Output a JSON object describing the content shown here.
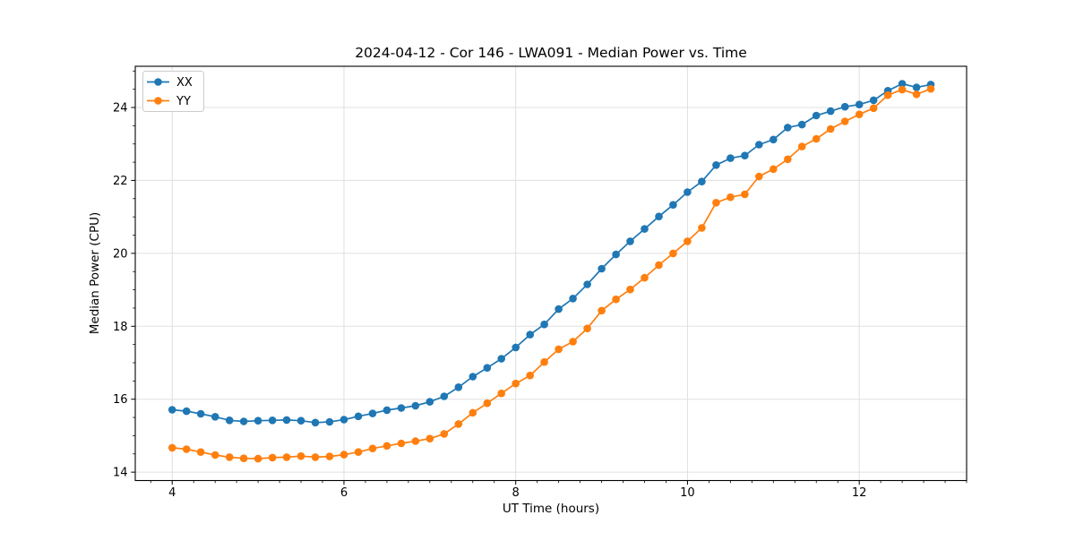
{
  "chart_data": {
    "type": "line",
    "title": "2024-04-12 - Cor 146 - LWA091 - Median Power vs. Time",
    "xlabel": "UT Time (hours)",
    "ylabel": "Median Power (CPU)",
    "xlim": [
      3.57,
      13.25
    ],
    "ylim": [
      13.77,
      25.13
    ],
    "xticks": [
      4,
      6,
      8,
      10,
      12
    ],
    "yticks": [
      14,
      16,
      18,
      20,
      22,
      24
    ],
    "x_minor_step": 0.25,
    "y_minor_step": 0.5,
    "grid": true,
    "legend_position": "upper-left",
    "colors": {
      "xx": "#1f77b4",
      "yy": "#ff7f0e",
      "grid": "#e0e0e0",
      "spine": "#000000"
    },
    "x": [
      4.0,
      4.167,
      4.333,
      4.5,
      4.667,
      4.833,
      5.0,
      5.167,
      5.333,
      5.5,
      5.667,
      5.833,
      6.0,
      6.167,
      6.333,
      6.5,
      6.667,
      6.833,
      7.0,
      7.167,
      7.333,
      7.5,
      7.667,
      7.833,
      8.0,
      8.167,
      8.333,
      8.5,
      8.667,
      8.833,
      9.0,
      9.167,
      9.333,
      9.5,
      9.667,
      9.833,
      10.0,
      10.167,
      10.333,
      10.5,
      10.667,
      10.833,
      11.0,
      11.167,
      11.333,
      11.5,
      11.667,
      11.833,
      12.0,
      12.167,
      12.333,
      12.5,
      12.667,
      12.833
    ],
    "series": [
      {
        "name": "XX",
        "color": "#1f77b4",
        "values": [
          15.71,
          15.67,
          15.6,
          15.52,
          15.42,
          15.39,
          15.41,
          15.42,
          15.43,
          15.41,
          15.36,
          15.38,
          15.44,
          15.53,
          15.61,
          15.7,
          15.76,
          15.82,
          15.93,
          16.08,
          16.33,
          16.62,
          16.86,
          17.11,
          17.42,
          17.77,
          18.05,
          18.47,
          18.76,
          19.15,
          19.58,
          19.97,
          20.33,
          20.67,
          21.01,
          21.33,
          21.68,
          21.97,
          22.42,
          22.61,
          22.68,
          22.98,
          23.12,
          23.45,
          23.53,
          23.78,
          23.9,
          24.02,
          24.08,
          24.2,
          24.46,
          24.65,
          24.55,
          24.63
        ]
      },
      {
        "name": "YY",
        "color": "#ff7f0e",
        "values": [
          14.67,
          14.63,
          14.55,
          14.47,
          14.41,
          14.38,
          14.37,
          14.4,
          14.41,
          14.44,
          14.41,
          14.43,
          14.48,
          14.55,
          14.65,
          14.72,
          14.79,
          14.85,
          14.92,
          15.05,
          15.32,
          15.63,
          15.89,
          16.16,
          16.43,
          16.65,
          17.02,
          17.37,
          17.58,
          17.94,
          18.43,
          18.74,
          19.01,
          19.33,
          19.68,
          20.0,
          20.33,
          20.7,
          21.39,
          21.54,
          21.62,
          22.11,
          22.31,
          22.58,
          22.93,
          23.14,
          23.41,
          23.62,
          23.81,
          23.98,
          24.34,
          24.49,
          24.36,
          24.51
        ]
      }
    ]
  }
}
